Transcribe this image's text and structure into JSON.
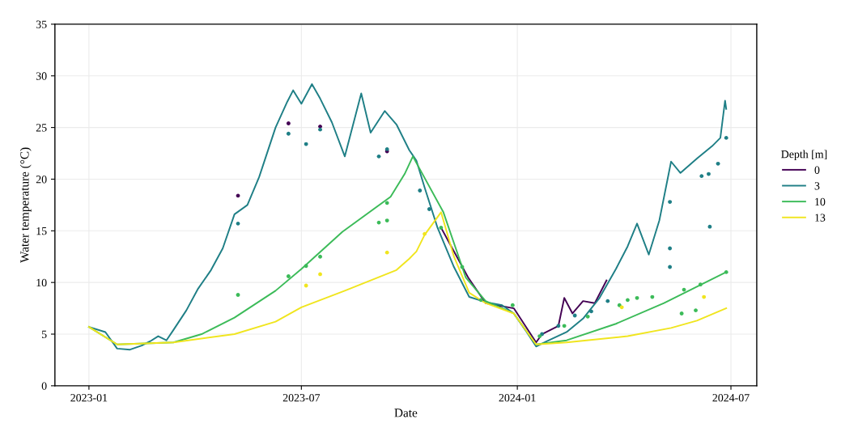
{
  "chart_data": {
    "type": "line",
    "xlabel": "Date",
    "ylabel": "Water temperature (°C)",
    "legend_title": "Depth [m]",
    "legend": "right",
    "grid": true,
    "xlim": [
      "2022-12-03",
      "2024-07-23"
    ],
    "ylim": [
      0,
      35
    ],
    "xticks": [
      {
        "value": "2023-01-01",
        "label": "2023-01"
      },
      {
        "value": "2023-07-01",
        "label": "2023-07"
      },
      {
        "value": "2024-01-01",
        "label": "2024-01"
      },
      {
        "value": "2024-07-01",
        "label": "2024-07"
      }
    ],
    "yticks": [
      0,
      5,
      10,
      15,
      20,
      25,
      30,
      35
    ],
    "series": [
      {
        "name": "0",
        "color": "#440154",
        "x": [
          "2023-10-28",
          "2023-11-20",
          "2023-12-05",
          "2023-12-29",
          "2024-01-17",
          "2024-01-22",
          "2024-02-05",
          "2024-02-10",
          "2024-02-17",
          "2024-02-26",
          "2024-03-07",
          "2024-03-17"
        ],
        "values": [
          15.3,
          10.5,
          8.0,
          7.5,
          4.2,
          5.0,
          5.8,
          8.5,
          7.0,
          8.2,
          8.0,
          10.2
        ]
      },
      {
        "name": "3",
        "color": "#1f7f86",
        "x": [
          "2023-01-01",
          "2023-01-15",
          "2023-01-25",
          "2023-02-05",
          "2023-02-15",
          "2023-02-22",
          "2023-03-01",
          "2023-03-08",
          "2023-03-14",
          "2023-03-25",
          "2023-04-04",
          "2023-04-15",
          "2023-04-25",
          "2023-05-05",
          "2023-05-16",
          "2023-05-26",
          "2023-06-09",
          "2023-06-19",
          "2023-06-24",
          "2023-07-01",
          "2023-07-10",
          "2023-07-17",
          "2023-07-27",
          "2023-08-07",
          "2023-08-21",
          "2023-08-29",
          "2023-09-10",
          "2023-09-20",
          "2023-10-01",
          "2023-10-07",
          "2023-10-14",
          "2023-10-25",
          "2023-11-08",
          "2023-11-21",
          "2023-12-05",
          "2023-12-19",
          "2023-12-29",
          "2024-01-09",
          "2024-01-17",
          "2024-01-26",
          "2024-02-12",
          "2024-02-26",
          "2024-03-11",
          "2024-03-25",
          "2024-04-04",
          "2024-04-12",
          "2024-04-22",
          "2024-05-01",
          "2024-05-11",
          "2024-05-19",
          "2024-06-02",
          "2024-06-15",
          "2024-06-22",
          "2024-06-26",
          "2024-06-27"
        ],
        "values": [
          5.7,
          5.2,
          3.6,
          3.5,
          3.9,
          4.3,
          4.8,
          4.4,
          5.4,
          7.3,
          9.4,
          11.2,
          13.3,
          16.6,
          17.5,
          20.2,
          25,
          27.5,
          28.6,
          27.3,
          29.2,
          27.8,
          25.5,
          22.2,
          28.3,
          24.5,
          26.6,
          25.3,
          22.8,
          21.8,
          19.2,
          15.3,
          11.5,
          8.6,
          8.1,
          7.8,
          7.0,
          5.2,
          3.8,
          4.3,
          5.2,
          6.5,
          8.5,
          11.3,
          13.5,
          15.7,
          12.7,
          16,
          21.7,
          20.6,
          22,
          23.2,
          24,
          27.6,
          26.8
        ]
      },
      {
        "name": "10",
        "color": "#3cbb59",
        "x": [
          "2023-01-01",
          "2023-01-25",
          "2023-03-14",
          "2023-04-07",
          "2023-05-05",
          "2023-06-09",
          "2023-07-01",
          "2023-08-05",
          "2023-09-15",
          "2023-09-27",
          "2023-10-04",
          "2023-10-30",
          "2023-11-18",
          "2023-12-05",
          "2023-12-29",
          "2024-01-17",
          "2024-02-12",
          "2024-03-25",
          "2024-05-05",
          "2024-06-02",
          "2024-06-27"
        ],
        "values": [
          5.7,
          4.0,
          4.2,
          5.0,
          6.6,
          9.2,
          11.3,
          14.9,
          18.3,
          20.5,
          22.2,
          16.8,
          10.5,
          8.2,
          7.0,
          4.0,
          4.4,
          6.0,
          8.0,
          9.6,
          11.0
        ]
      },
      {
        "name": "13",
        "color": "#f0e51f",
        "x": [
          "2023-01-01",
          "2023-01-25",
          "2023-03-14",
          "2023-05-05",
          "2023-06-09",
          "2023-07-01",
          "2023-08-07",
          "2023-09-20",
          "2023-10-01",
          "2023-10-07",
          "2023-10-14",
          "2023-10-28",
          "2023-11-08",
          "2023-11-21",
          "2023-12-05",
          "2023-12-29",
          "2024-01-17",
          "2024-02-12",
          "2024-04-04",
          "2024-05-11",
          "2024-06-02",
          "2024-06-27"
        ],
        "values": [
          5.7,
          4.0,
          4.2,
          5.0,
          6.2,
          7.6,
          9.2,
          11.2,
          12.3,
          13.0,
          14.6,
          16.8,
          12.5,
          9.0,
          8.0,
          7.0,
          4.0,
          4.2,
          4.8,
          5.6,
          6.3,
          7.5
        ]
      },
      {
        "type": "scatter",
        "color": "#440154",
        "x": [
          "2023-05-08",
          "2023-06-20",
          "2023-07-17",
          "2023-09-12"
        ],
        "values": [
          18.4,
          25.4,
          25.1,
          22.7
        ]
      },
      {
        "type": "scatter",
        "color": "#1f7f86",
        "x": [
          "2023-05-08",
          "2023-06-20",
          "2023-07-05",
          "2023-07-17",
          "2023-09-05",
          "2023-09-12",
          "2023-10-10",
          "2023-10-18",
          "2024-01-22",
          "2024-02-05",
          "2024-02-19",
          "2024-03-04",
          "2024-03-18",
          "2024-05-10",
          "2024-05-10",
          "2024-05-10",
          "2024-06-13",
          "2024-06-06",
          "2024-06-12",
          "2024-06-20",
          "2024-06-27"
        ],
        "values": [
          15.7,
          24.4,
          23.4,
          24.8,
          22.2,
          22.9,
          18.9,
          17.1,
          5.0,
          5.8,
          6.8,
          7.2,
          8.2,
          17.8,
          13.3,
          11.5,
          15.4,
          20.3,
          20.5,
          21.5,
          24.0
        ]
      },
      {
        "type": "scatter",
        "color": "#3cbb59",
        "x": [
          "2023-05-08",
          "2023-06-20",
          "2023-07-05",
          "2023-07-17",
          "2023-09-05",
          "2023-09-12",
          "2023-09-12",
          "2023-10-28",
          "2023-11-15",
          "2023-12-01",
          "2023-12-28",
          "2024-01-20",
          "2024-02-10",
          "2024-03-01",
          "2024-03-28",
          "2024-04-04",
          "2024-04-12",
          "2024-04-25",
          "2024-05-20",
          "2024-06-01",
          "2024-05-22",
          "2024-06-05",
          "2024-06-27"
        ],
        "values": [
          8.8,
          10.6,
          11.6,
          12.5,
          15.8,
          17.7,
          16.0,
          15.3,
          11.5,
          8.3,
          7.8,
          4.8,
          5.8,
          6.7,
          7.8,
          8.3,
          8.5,
          8.6,
          7.0,
          7.3,
          9.3,
          9.8,
          11.0
        ]
      },
      {
        "type": "scatter",
        "color": "#f0e51f",
        "x": [
          "2023-07-05",
          "2023-07-17",
          "2023-09-12",
          "2023-10-14",
          "2024-03-30",
          "2024-06-08"
        ],
        "values": [
          9.7,
          10.8,
          12.9,
          14.7,
          7.6,
          8.6
        ]
      }
    ]
  }
}
